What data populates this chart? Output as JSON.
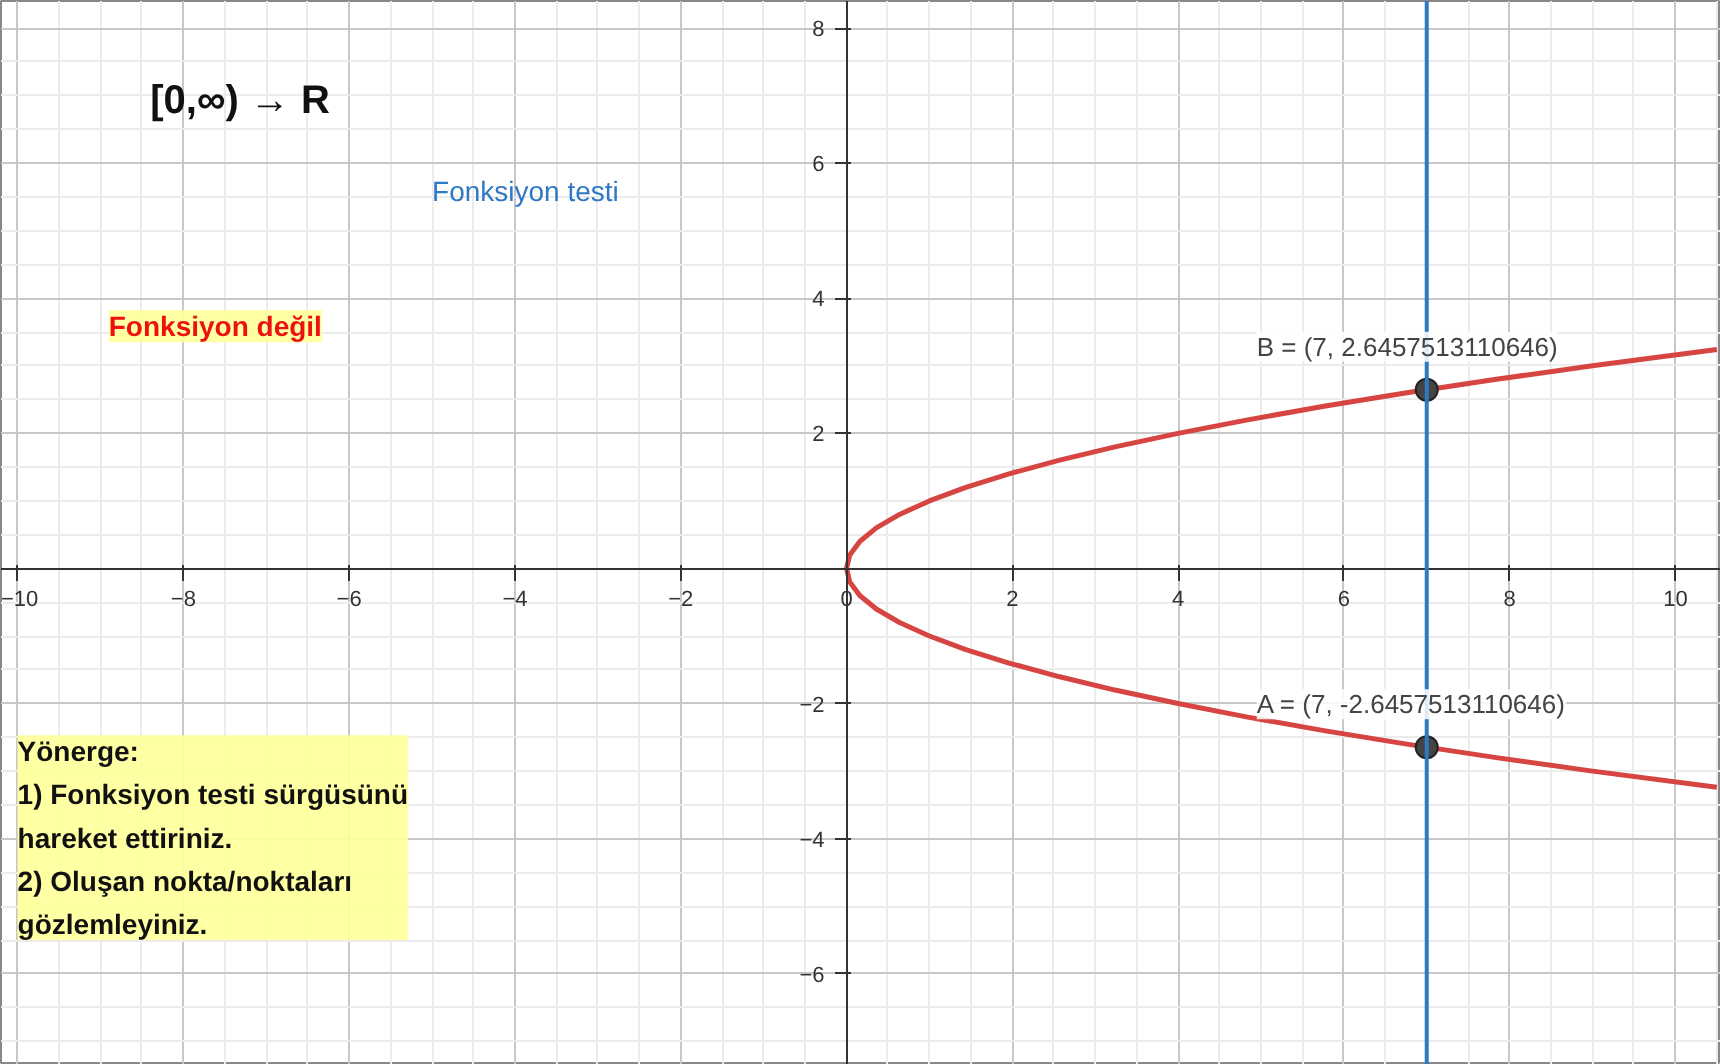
{
  "chart_data": {
    "type": "line",
    "xlim": [
      -10.2,
      10.55
    ],
    "ylim": [
      -7.35,
      8.4
    ],
    "xticks": [
      -10,
      -8,
      -6,
      -4,
      -2,
      0,
      2,
      4,
      6,
      8,
      10
    ],
    "yticks": [
      -6,
      -4,
      -2,
      2,
      4,
      6,
      8
    ],
    "grid": true,
    "series": [
      {
        "color": "#d64541",
        "marker": "none",
        "x": [
          10.5,
          9,
          7.84,
          6.76,
          5.76,
          4.84,
          4,
          3.24,
          2.56,
          1.96,
          1.44,
          1,
          0.64,
          0.36,
          0.16,
          0.04,
          0,
          0.04,
          0.16,
          0.36,
          0.64,
          1,
          1.44,
          1.96,
          2.56,
          3.24,
          4,
          4.84,
          5.76,
          6.76,
          7.84,
          9,
          10.5
        ],
        "values": [
          -3.24,
          -3,
          -2.8,
          -2.6,
          -2.4,
          -2.2,
          -2,
          -1.8,
          -1.6,
          -1.4,
          -1.2,
          -1,
          -0.8,
          -0.6,
          -0.4,
          -0.2,
          0,
          0.2,
          0.4,
          0.6,
          0.8,
          1,
          1.2,
          1.4,
          1.6,
          1.8,
          2,
          2.2,
          2.4,
          2.6,
          2.8,
          3,
          3.24
        ]
      },
      {
        "type": "scatter",
        "color": "#444444",
        "marker": "circle",
        "x": [
          7,
          7
        ],
        "values": [
          -2.6457513110646,
          2.6457513110646
        ]
      }
    ],
    "ref_lines": [
      {
        "axis": "x",
        "value": 7,
        "color": "#2f78c4"
      }
    ],
    "annotations": [
      "[0,∞) → R",
      "Fonksiyon testi",
      "Fonksiyon değil",
      "Yönerge:\n1) Fonksiyon testi sürgüsünü\nhareket ettiriniz.\n2) Oluşan nokta/noktaları\ngözlemleyiniz.",
      {
        "text": "B = (7, 2.6457513110646)",
        "x": 7,
        "y": 2.6457513110646
      },
      {
        "text": "A = (7, -2.6457513110646)",
        "x": 7,
        "y": -2.6457513110646
      }
    ]
  }
}
